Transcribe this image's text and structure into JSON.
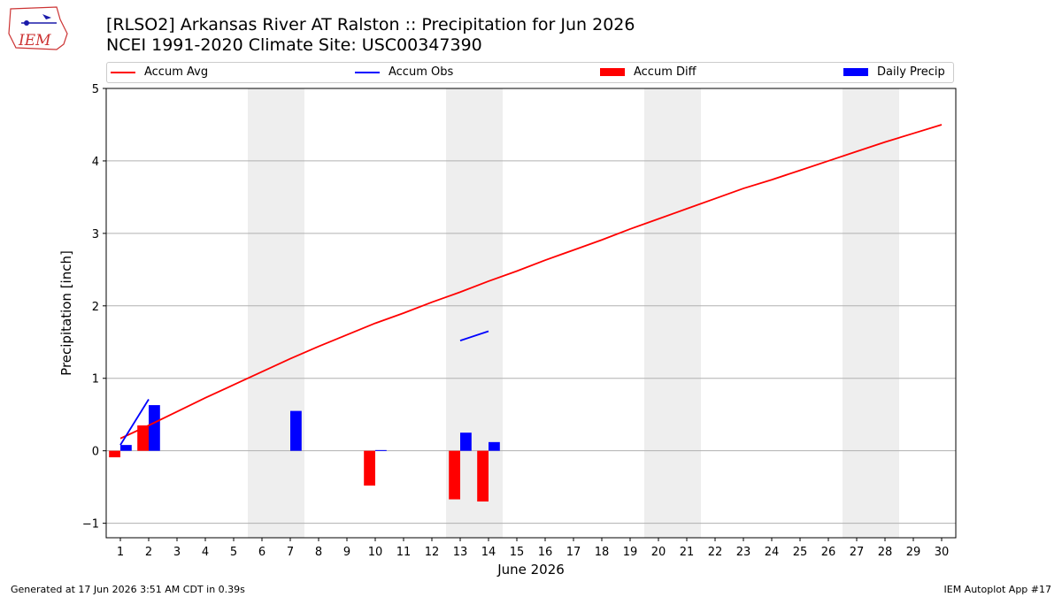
{
  "header": {
    "title_line1": "[RLSO2] Arkansas River  AT Ralston :: Precipitation for Jun 2026",
    "title_line2": "NCEI 1991-2020 Climate Site: USC00347390"
  },
  "logo": {
    "text": "IEM"
  },
  "footer": {
    "left": "Generated at 17 Jun 2026 3:51 AM CDT in 0.39s",
    "right": "IEM Autoplot App #17"
  },
  "chart_data": {
    "type": "bar",
    "xlabel": "June 2026",
    "ylabel": "Precipitation [inch]",
    "xlim": [
      0.5,
      30.5
    ],
    "ylim": [
      -1.2,
      5.0
    ],
    "x_ticks": [
      1,
      2,
      3,
      4,
      5,
      6,
      7,
      8,
      9,
      10,
      11,
      12,
      13,
      14,
      15,
      16,
      17,
      18,
      19,
      20,
      21,
      22,
      23,
      24,
      25,
      26,
      27,
      28,
      29,
      30
    ],
    "y_ticks": [
      -1,
      0,
      1,
      2,
      3,
      4,
      5
    ],
    "grid": "horizontal",
    "legend_position": "top",
    "weekend_shading": [
      [
        6,
        7
      ],
      [
        13,
        14
      ],
      [
        20,
        21
      ],
      [
        27,
        28
      ]
    ],
    "legend": [
      "Accum Avg",
      "Accum Obs",
      "Accum Diff",
      "Daily Precip"
    ],
    "colors": {
      "avg": "#ff0000",
      "obs": "#0000ff",
      "diff": "#ff0000",
      "daily": "#0000ff",
      "shade": "#eeeeee",
      "grid": "#b0b0b0"
    },
    "series": [
      {
        "name": "Accum Avg",
        "kind": "line",
        "x": [
          1,
          2,
          3,
          4,
          5,
          6,
          7,
          8,
          9,
          10,
          11,
          12,
          13,
          14,
          15,
          16,
          17,
          18,
          19,
          20,
          21,
          22,
          23,
          24,
          25,
          26,
          27,
          28,
          29,
          30
        ],
        "values": [
          0.17,
          0.35,
          0.54,
          0.73,
          0.91,
          1.09,
          1.27,
          1.44,
          1.6,
          1.76,
          1.9,
          2.05,
          2.19,
          2.34,
          2.48,
          2.63,
          2.77,
          2.91,
          3.06,
          3.2,
          3.34,
          3.48,
          3.62,
          3.74,
          3.87,
          4.0,
          4.13,
          4.26,
          4.38,
          4.5
        ]
      },
      {
        "name": "Accum Obs",
        "kind": "line",
        "segments": [
          {
            "x": [
              1,
              2
            ],
            "values": [
              0.08,
              0.71
            ]
          },
          {
            "x": [
              13,
              14
            ],
            "values": [
              1.52,
              1.65
            ]
          }
        ]
      },
      {
        "name": "Accum Diff",
        "kind": "bar",
        "x": [
          1,
          2,
          10,
          13,
          14
        ],
        "values": [
          -0.09,
          0.35,
          -0.48,
          -0.67,
          -0.7
        ]
      },
      {
        "name": "Daily Precip",
        "kind": "bar",
        "x": [
          1,
          2,
          7,
          10,
          13,
          14
        ],
        "values": [
          0.08,
          0.63,
          0.55,
          0.01,
          0.25,
          0.12
        ]
      }
    ]
  }
}
